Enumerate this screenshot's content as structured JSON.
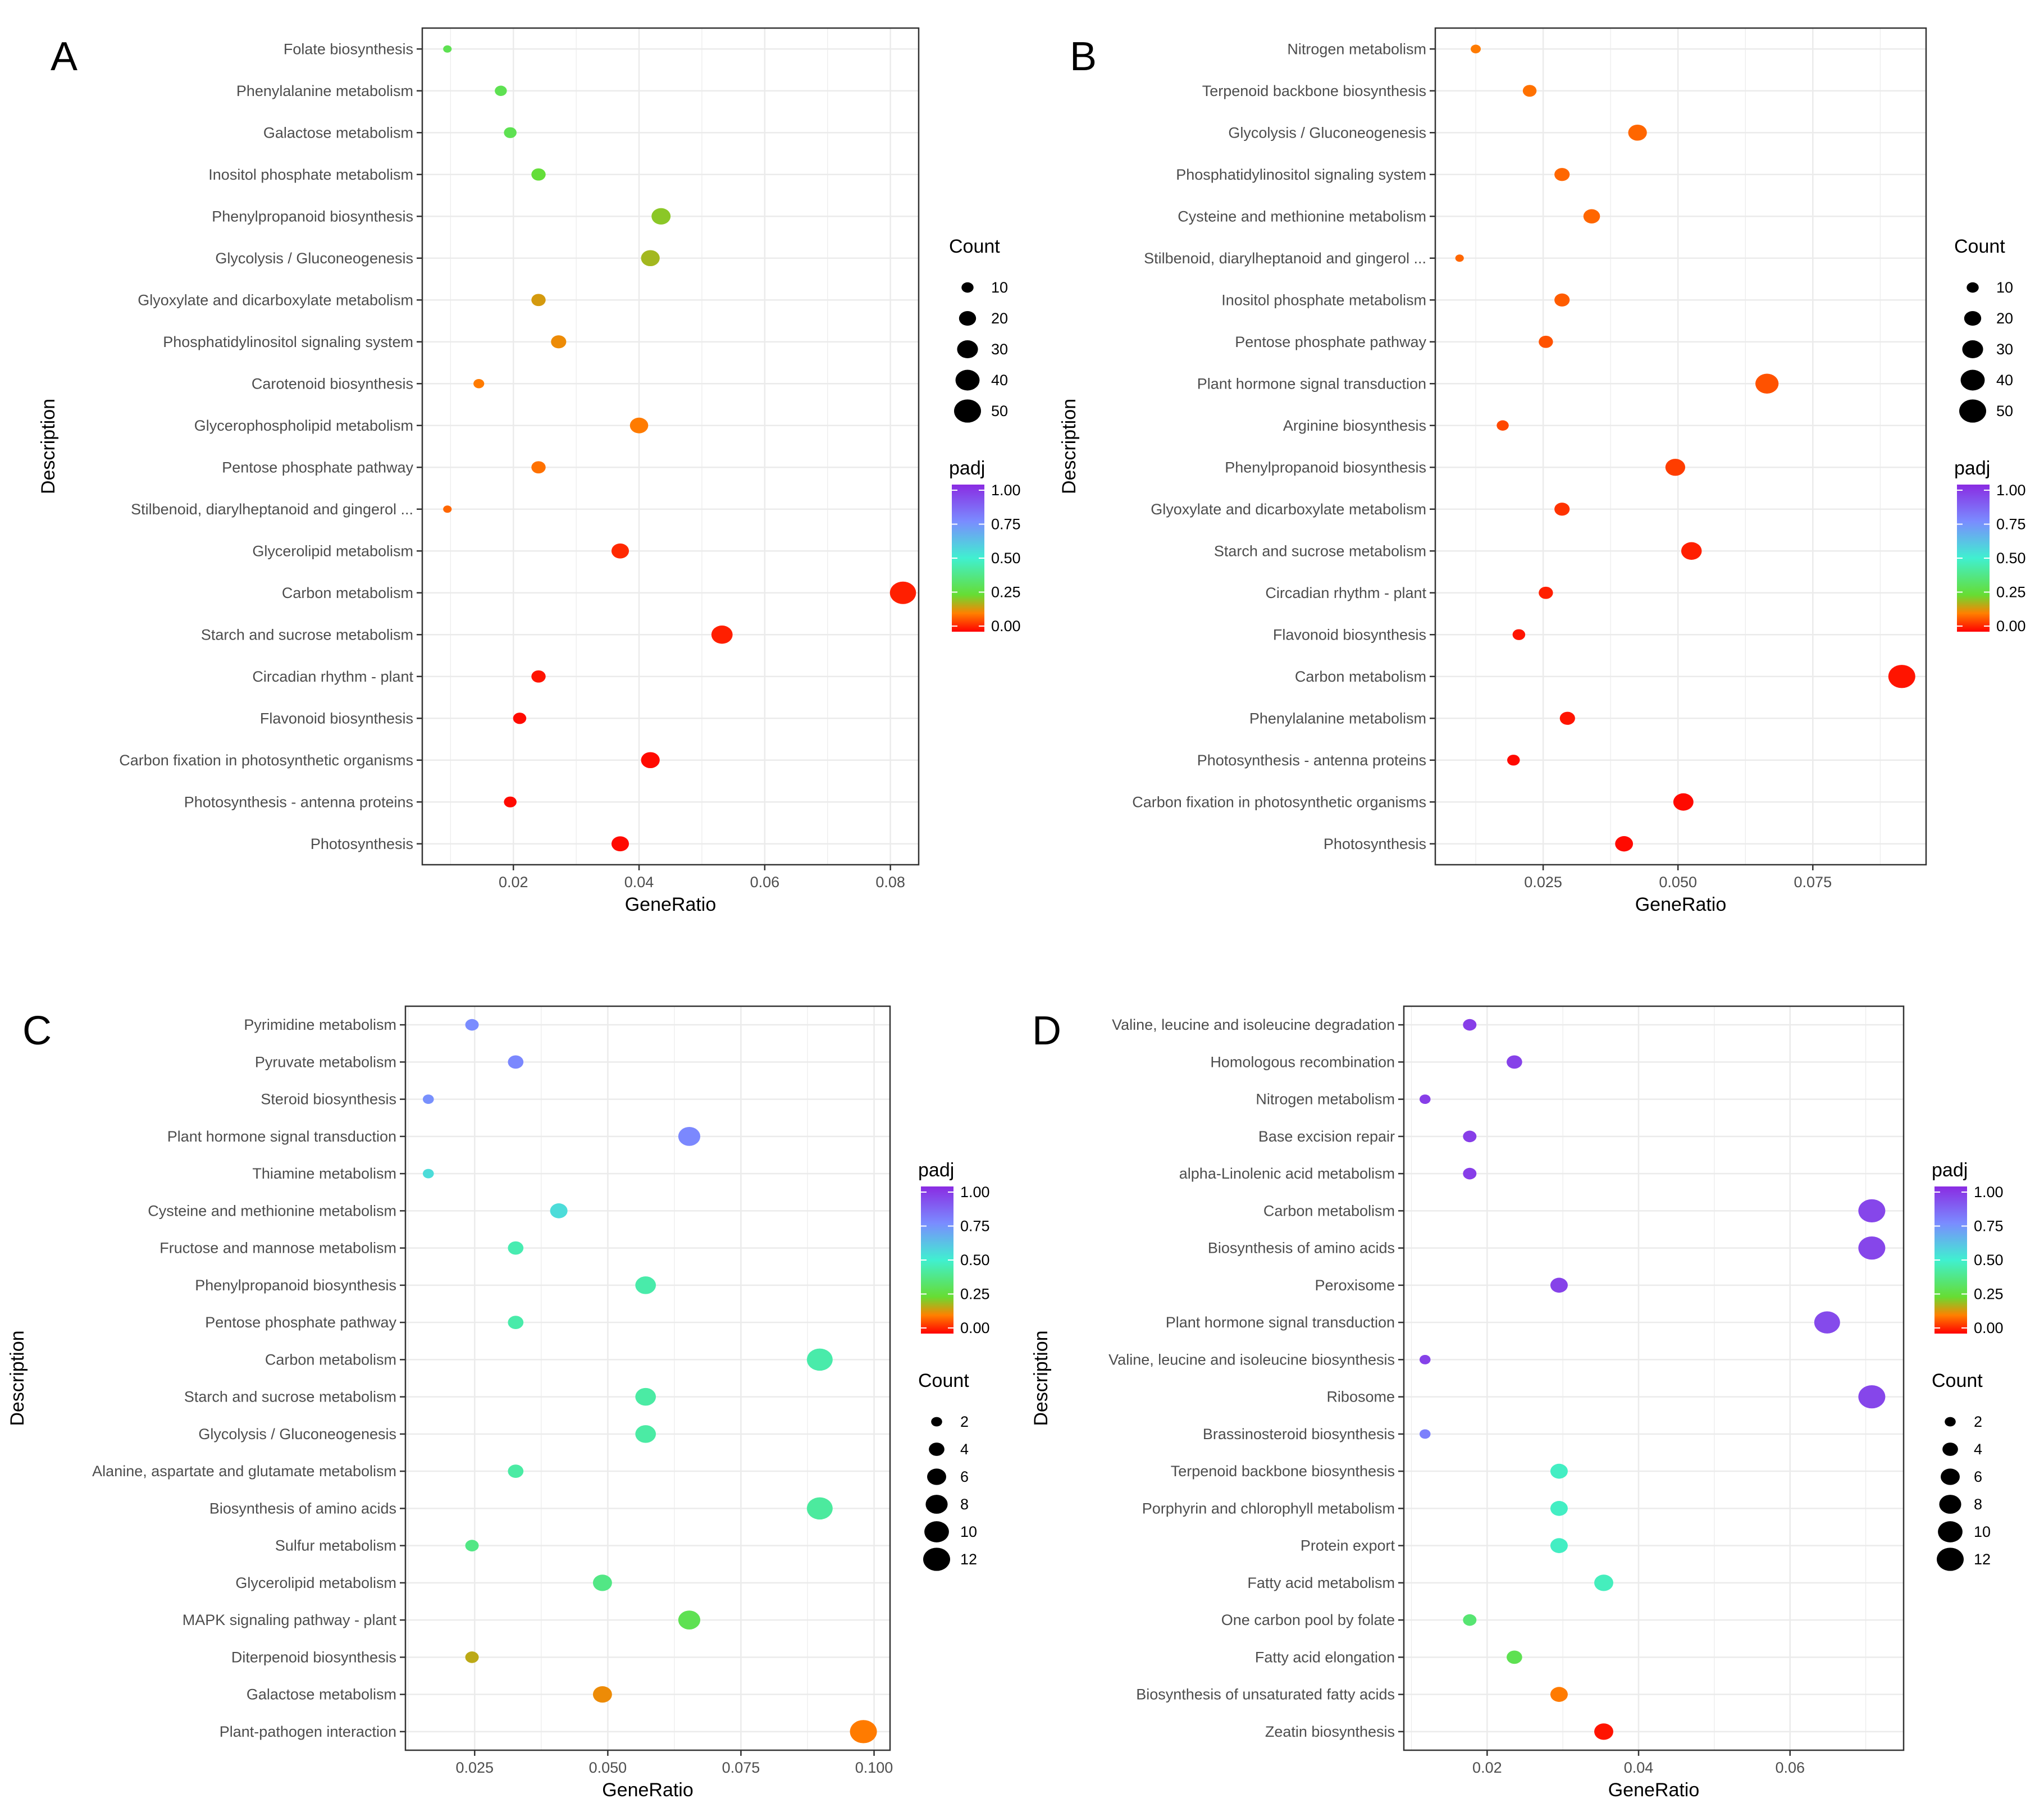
{
  "size_legend_title": "Count",
  "color_legend_title": "padj",
  "color_scale": {
    "stops": [
      {
        "value": 0.0,
        "color": "#ff0000"
      },
      {
        "value": 0.125,
        "color": "#ff8000"
      },
      {
        "value": 0.25,
        "color": "#66dd33"
      },
      {
        "value": 0.5,
        "color": "#40f0d0"
      },
      {
        "value": 0.75,
        "color": "#7a8cff"
      },
      {
        "value": 1.0,
        "color": "#8a2be2"
      }
    ],
    "ticks": [
      "1.00",
      "0.75",
      "0.50",
      "0.25",
      "0.00"
    ]
  },
  "chart_data": [
    {
      "panel": "A",
      "type": "scatter",
      "xlabel": "GeneRatio",
      "ylabel": "Description",
      "xlim": [
        0.0055,
        0.0845
      ],
      "x_ticks": [
        0.02,
        0.04,
        0.06,
        0.08
      ],
      "x_tick_labels": [
        "0.02",
        "0.04",
        "0.06",
        "0.08"
      ],
      "size_legend": [
        10,
        20,
        30,
        40,
        50
      ],
      "legend_order": "count-first",
      "categories": [
        "Folate biosynthesis",
        "Phenylalanine metabolism",
        "Galactose metabolism",
        "Inositol phosphate metabolism",
        "Phenylpropanoid biosynthesis",
        "Glycolysis / Gluconeogenesis",
        "Glyoxylate and dicarboxylate metabolism",
        "Phosphatidylinositol signaling system",
        "Carotenoid biosynthesis",
        "Glycerophospholipid metabolism",
        "Pentose phosphate pathway",
        "Stilbenoid, diarylheptanoid and gingerol ...",
        "Glycerolipid metabolism",
        "Carbon metabolism",
        "Starch and sucrose metabolism",
        "Circadian rhythm - plant",
        "Flavonoid biosynthesis",
        "Carbon fixation in photosynthetic organisms",
        "Photosynthesis - antenna proteins",
        "Photosynthesis"
      ],
      "x": [
        0.0095,
        0.018,
        0.0195,
        0.024,
        0.0435,
        0.0418,
        0.024,
        0.0272,
        0.0145,
        0.04,
        0.024,
        0.0095,
        0.037,
        0.082,
        0.0532,
        0.024,
        0.021,
        0.0418,
        0.0195,
        0.037
      ],
      "count": [
        5,
        10,
        11,
        14,
        25,
        24,
        14,
        16,
        8,
        23,
        14,
        5,
        21,
        47,
        31,
        14,
        12,
        24,
        11,
        21
      ],
      "padj": [
        0.3,
        0.3,
        0.3,
        0.26,
        0.22,
        0.2,
        0.16,
        0.14,
        0.12,
        0.12,
        0.11,
        0.1,
        0.04,
        0.03,
        0.03,
        0.02,
        0.01,
        0.01,
        0.01,
        0.01
      ]
    },
    {
      "panel": "B",
      "type": "scatter",
      "xlabel": "GeneRatio",
      "ylabel": "Description",
      "xlim": [
        0.005,
        0.096
      ],
      "x_ticks": [
        0.025,
        0.05,
        0.075
      ],
      "x_tick_labels": [
        "0.025",
        "0.050",
        "0.075"
      ],
      "size_legend": [
        10,
        20,
        30,
        40,
        50
      ],
      "legend_order": "count-first",
      "categories": [
        "Nitrogen metabolism",
        "Terpenoid backbone biosynthesis",
        "Glycolysis / Gluconeogenesis",
        "Phosphatidylinositol signaling system",
        "Cysteine and methionine metabolism",
        "Stilbenoid, diarylheptanoid and gingerol ...",
        "Inositol phosphate metabolism",
        "Pentose phosphate pathway",
        "Plant hormone signal transduction",
        "Arginine biosynthesis",
        "Phenylpropanoid biosynthesis",
        "Glyoxylate and dicarboxylate metabolism",
        "Starch and sucrose metabolism",
        "Circadian rhythm - plant",
        "Flavonoid biosynthesis",
        "Carbon metabolism",
        "Phenylalanine metabolism",
        "Photosynthesis - antenna proteins",
        "Carbon fixation in photosynthetic organisms",
        "Photosynthesis"
      ],
      "x": [
        0.0125,
        0.0225,
        0.0425,
        0.0285,
        0.034,
        0.0095,
        0.0285,
        0.0255,
        0.0665,
        0.0175,
        0.0495,
        0.0285,
        0.0525,
        0.0255,
        0.0205,
        0.0915,
        0.0295,
        0.0195,
        0.051,
        0.04
      ],
      "count": [
        7,
        13,
        24,
        16,
        19,
        5,
        16,
        14,
        37,
        10,
        27,
        16,
        29,
        14,
        11,
        50,
        16,
        11,
        28,
        22
      ],
      "padj": [
        0.12,
        0.11,
        0.1,
        0.1,
        0.1,
        0.1,
        0.09,
        0.08,
        0.08,
        0.07,
        0.06,
        0.05,
        0.03,
        0.03,
        0.02,
        0.02,
        0.02,
        0.01,
        0.01,
        0.01
      ]
    },
    {
      "panel": "C",
      "type": "scatter",
      "xlabel": "GeneRatio",
      "ylabel": "Description",
      "xlim": [
        0.012,
        0.103
      ],
      "x_ticks": [
        0.025,
        0.05,
        0.075,
        0.1
      ],
      "x_tick_labels": [
        "0.025",
        "0.050",
        "0.075",
        "0.100"
      ],
      "size_legend": [
        2,
        4,
        6,
        8,
        10,
        12
      ],
      "legend_order": "padj-first",
      "categories": [
        "Pyrimidine metabolism",
        "Pyruvate metabolism",
        "Steroid biosynthesis",
        "Plant hormone signal transduction",
        "Thiamine metabolism",
        "Cysteine and methionine metabolism",
        "Fructose and mannose metabolism",
        "Phenylpropanoid biosynthesis",
        "Pentose phosphate pathway",
        "Carbon metabolism",
        "Starch and sucrose metabolism",
        "Glycolysis / Gluconeogenesis",
        "Alanine, aspartate and glutamate metabolism",
        "Biosynthesis of amino acids",
        "Sulfur metabolism",
        "Glycerolipid metabolism",
        "MAPK signaling pathway - plant",
        "Diterpenoid biosynthesis",
        "Galactose metabolism",
        "Plant-pathogen interaction"
      ],
      "x": [
        0.0245,
        0.0327,
        0.0163,
        0.0653,
        0.0163,
        0.0408,
        0.0327,
        0.0571,
        0.0327,
        0.0898,
        0.0571,
        0.0571,
        0.0327,
        0.0898,
        0.0245,
        0.049,
        0.0653,
        0.0245,
        0.049,
        0.098
      ],
      "count": [
        3,
        4,
        2,
        8,
        2,
        5,
        4,
        7,
        4,
        11,
        7,
        7,
        4,
        11,
        3,
        6,
        8,
        3,
        6,
        12
      ],
      "padj": [
        0.75,
        0.76,
        0.74,
        0.76,
        0.55,
        0.55,
        0.45,
        0.44,
        0.44,
        0.44,
        0.43,
        0.43,
        0.43,
        0.42,
        0.38,
        0.38,
        0.3,
        0.18,
        0.14,
        0.12
      ]
    },
    {
      "panel": "D",
      "type": "scatter",
      "xlabel": "GeneRatio",
      "ylabel": "Description",
      "xlim": [
        0.009,
        0.075
      ],
      "x_ticks": [
        0.02,
        0.04,
        0.06
      ],
      "x_tick_labels": [
        "0.02",
        "0.04",
        "0.06"
      ],
      "size_legend": [
        2,
        4,
        6,
        8,
        10,
        12
      ],
      "legend_order": "padj-first",
      "categories": [
        "Valine, leucine and isoleucine degradation",
        "Homologous recombination",
        "Nitrogen metabolism",
        "Base excision repair",
        "alpha-Linolenic acid metabolism",
        "Carbon metabolism",
        "Biosynthesis of amino acids",
        "Peroxisome",
        "Plant hormone signal transduction",
        "Valine, leucine and isoleucine biosynthesis",
        "Ribosome",
        "Brassinosteroid biosynthesis",
        "Terpenoid backbone biosynthesis",
        "Porphyrin and chlorophyll metabolism",
        "Protein export",
        "Fatty acid metabolism",
        "One carbon pool by folate",
        "Fatty acid elongation",
        "Biosynthesis of unsaturated fatty acids",
        "Zeatin biosynthesis"
      ],
      "x": [
        0.0177,
        0.0236,
        0.0118,
        0.0177,
        0.0177,
        0.0708,
        0.0708,
        0.0295,
        0.0649,
        0.0118,
        0.0708,
        0.0118,
        0.0295,
        0.0295,
        0.0295,
        0.0354,
        0.0177,
        0.0236,
        0.0295,
        0.0354
      ],
      "count": [
        3,
        4,
        2,
        3,
        3,
        12,
        12,
        5,
        11,
        2,
        12,
        2,
        5,
        5,
        5,
        6,
        3,
        4,
        5,
        6
      ],
      "padj": [
        0.95,
        0.94,
        0.95,
        0.95,
        0.95,
        0.93,
        0.93,
        0.94,
        0.92,
        0.94,
        0.93,
        0.78,
        0.48,
        0.48,
        0.48,
        0.47,
        0.35,
        0.3,
        0.12,
        0.02
      ]
    }
  ]
}
